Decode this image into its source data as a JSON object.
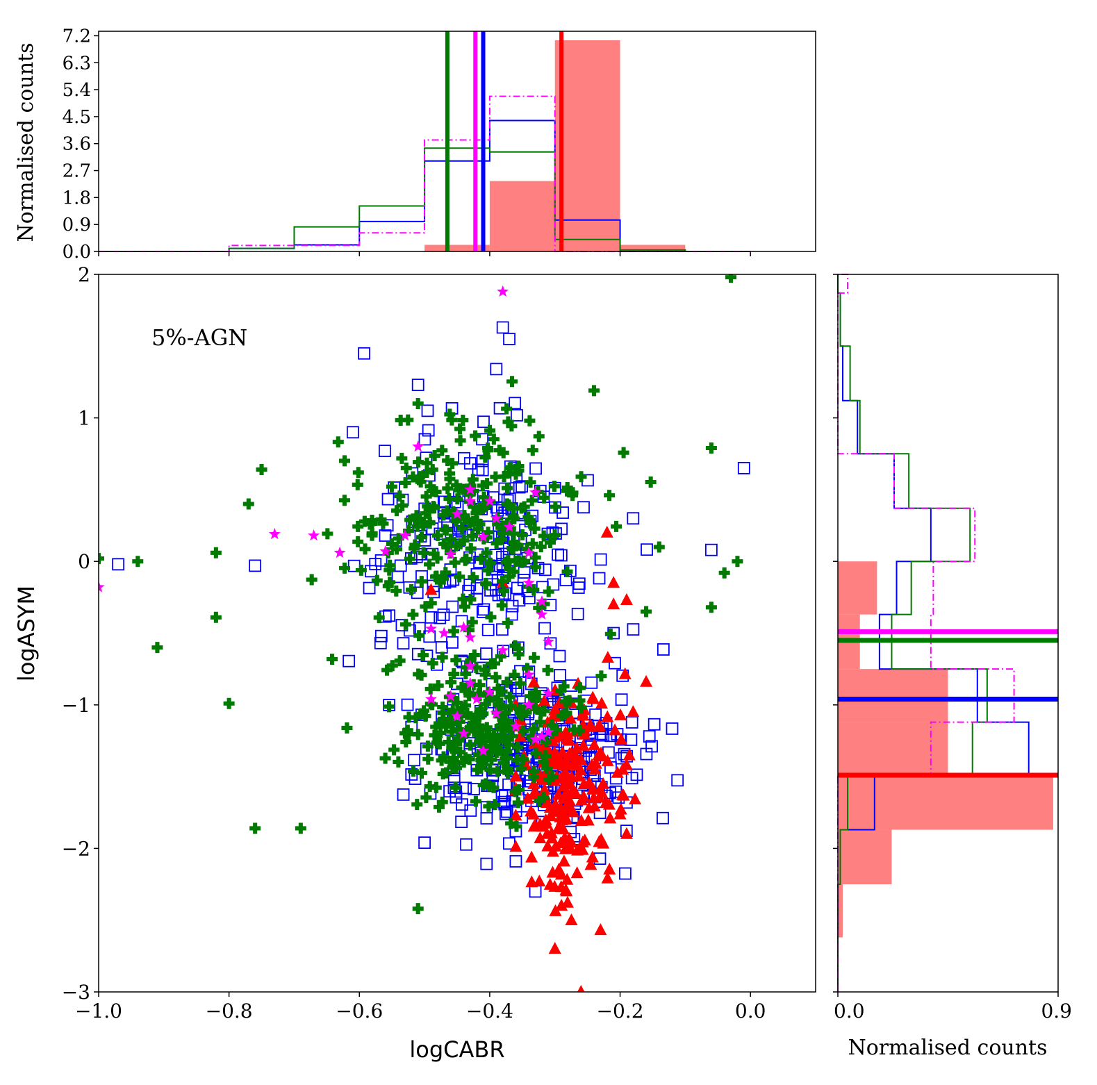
{
  "colors": {
    "red": "#ff0000",
    "red_fill": "#ff8080",
    "blue": "#0000ff",
    "green": "#007a00",
    "magenta": "#ff00ff"
  },
  "chart_data": [
    {
      "panel": "main",
      "type": "scatter",
      "annotation": "5%-AGN",
      "xlabel": "logCABR",
      "ylabel": "logASYM",
      "xlim": [
        -1.0,
        0.1
      ],
      "ylim": [
        -3,
        2
      ],
      "xticks": [
        "−1.0",
        "−0.8",
        "−0.6",
        "−0.4",
        "−0.2",
        "0.0"
      ],
      "xtick_values": [
        -1.0,
        -0.8,
        -0.6,
        -0.4,
        -0.2,
        0.0
      ],
      "yticks": [
        "2",
        "1",
        "0",
        "−1",
        "−2",
        "−3"
      ],
      "ytick_values": [
        2,
        1,
        0,
        -1,
        -2,
        -3
      ],
      "series": [
        {
          "marker": "cross",
          "color": "green",
          "approx_count": 520,
          "clusters": [
            {
              "x_mean": -0.44,
              "y_mean": 0.25,
              "x_sd": 0.09,
              "y_sd": 0.35,
              "n": 260
            },
            {
              "x_mean": -0.4,
              "y_mean": -1.15,
              "x_sd": 0.07,
              "y_sd": 0.28,
              "n": 260
            }
          ],
          "points": [
            [
              -1.0,
              0.02
            ],
            [
              -0.94,
              0.0
            ],
            [
              -0.91,
              -0.6
            ],
            [
              -0.82,
              -0.39
            ],
            [
              -0.82,
              0.06
            ],
            [
              -0.8,
              -0.99
            ],
            [
              -0.77,
              0.4
            ],
            [
              -0.76,
              -1.86
            ],
            [
              -0.75,
              0.64
            ],
            [
              -0.69,
              -1.86
            ],
            [
              -0.51,
              -2.42
            ],
            [
              -0.51,
              1.1
            ],
            [
              -0.24,
              1.19
            ],
            [
              -0.16,
              -0.35
            ],
            [
              -0.14,
              0.1
            ],
            [
              -0.06,
              0.79
            ],
            [
              -0.06,
              -0.32
            ],
            [
              -0.03,
              1.98
            ],
            [
              -0.02,
              0.0
            ],
            [
              -0.04,
              -0.08
            ]
          ]
        },
        {
          "marker": "square",
          "color": "blue",
          "approx_count": 480,
          "clusters": [
            {
              "x_mean": -0.42,
              "y_mean": 0.05,
              "x_sd": 0.1,
              "y_sd": 0.45,
              "n": 200
            },
            {
              "x_mean": -0.33,
              "y_mean": -1.3,
              "x_sd": 0.08,
              "y_sd": 0.3,
              "n": 280
            }
          ],
          "points": [
            [
              -0.97,
              -0.02
            ],
            [
              -0.76,
              -0.03
            ],
            [
              -0.61,
              0.9
            ],
            [
              -0.51,
              1.23
            ],
            [
              -0.39,
              1.34
            ],
            [
              -0.38,
              1.63
            ],
            [
              -0.37,
              1.55
            ],
            [
              -0.18,
              0.3
            ],
            [
              -0.06,
              0.08
            ],
            [
              -0.01,
              0.65
            ],
            [
              -0.19,
              -1.68
            ],
            [
              -0.33,
              -2.3
            ],
            [
              -0.36,
              -2.09
            ],
            [
              -0.5,
              -1.96
            ],
            [
              -0.36,
              -1.88
            ],
            [
              -0.21,
              -0.5
            ]
          ]
        },
        {
          "marker": "triangle",
          "color": "red",
          "approx_count": 230,
          "clusters": [
            {
              "x_mean": -0.28,
              "y_mean": -1.6,
              "x_sd": 0.04,
              "y_sd": 0.35,
              "n": 230
            }
          ],
          "points": [
            [
              -0.22,
              0.2
            ],
            [
              -0.21,
              -0.15
            ],
            [
              -0.21,
              -0.3
            ],
            [
              -0.19,
              -0.27
            ],
            [
              -0.16,
              -0.84
            ],
            [
              -0.18,
              -1.05
            ],
            [
              -0.19,
              -1.42
            ],
            [
              -0.19,
              -1.9
            ],
            [
              -0.23,
              -2.57
            ],
            [
              -0.3,
              -2.7
            ],
            [
              -0.26,
              -3.0
            ],
            [
              -0.29,
              -2.4
            ],
            [
              -0.49,
              -0.2
            ],
            [
              -0.38,
              -0.15
            ]
          ]
        },
        {
          "marker": "star",
          "color": "magenta",
          "approx_count": 45,
          "points": [
            [
              -1.0,
              -0.18
            ],
            [
              -0.73,
              0.19
            ],
            [
              -0.67,
              0.18
            ],
            [
              -0.63,
              0.06
            ],
            [
              -0.56,
              0.07
            ],
            [
              -0.53,
              0.18
            ],
            [
              -0.51,
              0.8
            ],
            [
              -0.49,
              -0.47
            ],
            [
              -0.46,
              0.05
            ],
            [
              -0.45,
              0.33
            ],
            [
              -0.43,
              0.5
            ],
            [
              -0.43,
              0.42
            ],
            [
              -0.41,
              0.17
            ],
            [
              -0.4,
              0.42
            ],
            [
              -0.39,
              0.3
            ],
            [
              -0.38,
              1.88
            ],
            [
              -0.37,
              0.24
            ],
            [
              -0.34,
              0.06
            ],
            [
              -0.33,
              0.48
            ],
            [
              -0.32,
              -0.28
            ],
            [
              -0.31,
              -0.56
            ],
            [
              -0.47,
              -0.5
            ],
            [
              -0.44,
              -0.46
            ],
            [
              -0.43,
              -0.53
            ],
            [
              -0.49,
              -0.96
            ],
            [
              -0.46,
              -0.94
            ],
            [
              -0.43,
              -0.85
            ],
            [
              -0.42,
              -0.96
            ],
            [
              -0.4,
              -0.91
            ],
            [
              -0.45,
              -1.08
            ],
            [
              -0.39,
              -1.06
            ],
            [
              -0.44,
              -1.2
            ],
            [
              -0.41,
              -1.32
            ],
            [
              -0.36,
              -1.15
            ],
            [
              -0.34,
              -1.0
            ],
            [
              -0.33,
              -1.24
            ],
            [
              -0.32,
              -1.22
            ],
            [
              -0.31,
              -1.19
            ],
            [
              -0.34,
              -0.79
            ],
            [
              -0.38,
              -0.62
            ],
            [
              -0.34,
              -0.15
            ],
            [
              -0.43,
              -0.73
            ],
            [
              -0.31,
              -0.92
            ],
            [
              -0.32,
              -0.37
            ]
          ]
        }
      ]
    },
    {
      "panel": "top",
      "type": "histogram",
      "ylabel": "Normalised counts",
      "xlim": [
        -1.0,
        0.1
      ],
      "ylim": [
        0,
        7.35
      ],
      "yticks": [
        "0.0",
        "0.9",
        "1.8",
        "2.7",
        "3.6",
        "4.5",
        "5.4",
        "6.3",
        "7.2"
      ],
      "ytick_values": [
        0,
        0.9,
        1.8,
        2.7,
        3.6,
        4.5,
        5.4,
        6.3,
        7.2
      ],
      "xtick_values": [
        -1.0,
        -0.8,
        -0.6,
        -0.4,
        -0.2,
        0.0
      ],
      "bin_edges": [
        -1.0,
        -0.9,
        -0.8,
        -0.7,
        -0.6,
        -0.5,
        -0.4,
        -0.3,
        -0.2,
        -0.1,
        0.0
      ],
      "series": [
        {
          "color": "red",
          "style": "filled",
          "values": [
            0,
            0,
            0,
            0,
            0,
            0.22,
            2.35,
            7.05,
            0.22,
            0
          ]
        },
        {
          "color": "blue",
          "style": "step",
          "values": [
            0,
            0,
            0.1,
            0.22,
            1.0,
            3.02,
            4.37,
            1.05,
            0,
            0
          ]
        },
        {
          "color": "green",
          "style": "step",
          "values": [
            0,
            0,
            0.1,
            0.82,
            1.52,
            3.45,
            3.32,
            0.4,
            0.05,
            0
          ]
        },
        {
          "color": "magenta",
          "style": "dashdot",
          "values": [
            0,
            0,
            0.2,
            0.2,
            0.62,
            3.72,
            5.18,
            0,
            0,
            0
          ]
        }
      ],
      "median_lines": [
        {
          "color": "green",
          "x": -0.465
        },
        {
          "color": "magenta",
          "x": -0.422
        },
        {
          "color": "blue",
          "x": -0.41
        },
        {
          "color": "red",
          "x": -0.29
        }
      ]
    },
    {
      "panel": "right",
      "type": "histogram",
      "orientation": "horizontal",
      "xlabel": "Normalised counts",
      "xlim": [
        0,
        0.9
      ],
      "xticks": [
        "0.0",
        "0.9"
      ],
      "xtick_values": [
        0,
        0.9
      ],
      "ylim": [
        -3,
        2
      ],
      "ytick_values": [
        2,
        1,
        0,
        -1,
        -2,
        -3
      ],
      "series": [
        {
          "color": "red",
          "style": "filled",
          "bin_edges": [
            -3.0,
            -2.62,
            -2.25,
            -1.87,
            -1.5,
            -1.12,
            -0.75,
            -0.37,
            0.0,
            0.37
          ],
          "values": [
            0.0,
            0.02,
            0.22,
            0.88,
            0.45,
            0.45,
            0.09,
            0.16,
            0.0
          ]
        },
        {
          "color": "blue",
          "style": "step",
          "bin_edges": [
            -3.0,
            -2.62,
            -2.25,
            -1.87,
            -1.5,
            -1.12,
            -0.75,
            -0.37,
            0.0,
            0.37,
            0.75,
            1.12,
            1.5,
            1.87,
            2.0
          ],
          "values": [
            0,
            0,
            0.01,
            0.15,
            0.78,
            0.57,
            0.17,
            0.24,
            0.38,
            0.23,
            0.08,
            0.02,
            0.01,
            0.0
          ]
        },
        {
          "color": "green",
          "style": "step",
          "bin_edges": [
            -3.0,
            -2.62,
            -2.25,
            -1.87,
            -1.5,
            -1.12,
            -0.75,
            -0.37,
            0.0,
            0.37,
            0.75,
            1.12,
            1.5,
            1.87,
            2.0
          ],
          "values": [
            0,
            0,
            0.01,
            0.04,
            0.55,
            0.61,
            0.22,
            0.3,
            0.54,
            0.29,
            0.09,
            0.05,
            0.01,
            0.0
          ]
        },
        {
          "color": "magenta",
          "style": "dashdot",
          "bin_edges": [
            -3.0,
            -2.62,
            -2.25,
            -1.87,
            -1.5,
            -1.12,
            -0.75,
            -0.37,
            0.0,
            0.37,
            0.75,
            1.12,
            1.5,
            1.87,
            2.0
          ],
          "values": [
            0,
            0,
            0,
            0,
            0.38,
            0.72,
            0.38,
            0.39,
            0.56,
            0.23,
            0,
            0,
            0,
            0.04
          ]
        }
      ],
      "median_lines": [
        {
          "color": "magenta",
          "y": -0.49
        },
        {
          "color": "green",
          "y": -0.55
        },
        {
          "color": "blue",
          "y": -0.96
        },
        {
          "color": "red",
          "y": -1.49
        }
      ]
    }
  ]
}
